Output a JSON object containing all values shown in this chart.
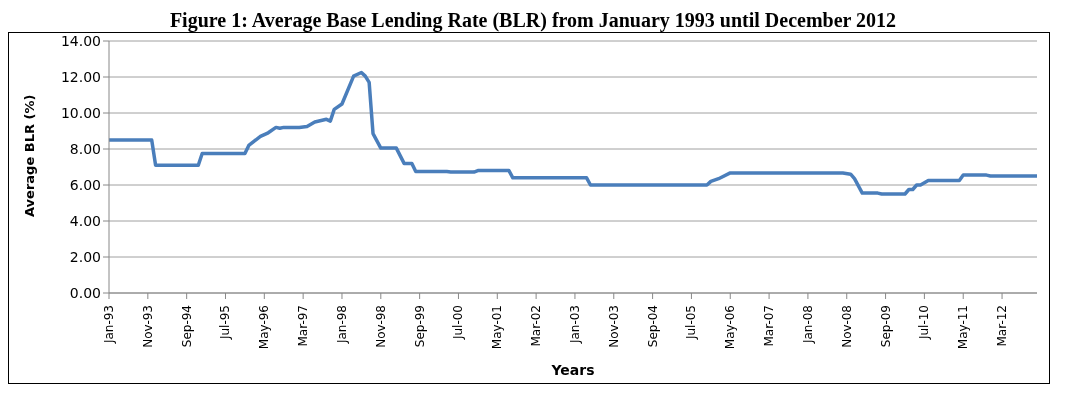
{
  "chart_data": {
    "type": "line",
    "title": "Figure 1: Average Base Lending Rate (BLR) from January 1993 until December 2012",
    "xlabel": "Years",
    "ylabel": "Average BLR (%)",
    "x": [
      "1993-01",
      "1993-12",
      "1994-01",
      "1994-12",
      "1995-01",
      "1995-12",
      "1996-01",
      "1996-04",
      "1996-06",
      "1996-08",
      "1996-09",
      "1996-10",
      "1997-02",
      "1997-04",
      "1997-06",
      "1997-09",
      "1997-10",
      "1997-11",
      "1998-01",
      "1998-04",
      "1998-06",
      "1998-07",
      "1998-08",
      "1998-09",
      "1998-11",
      "1999-03",
      "1999-05",
      "1999-07",
      "1999-08",
      "2000-04",
      "2000-05",
      "2000-11",
      "2000-12",
      "2001-08",
      "2001-09",
      "2003-04",
      "2003-05",
      "2005-11",
      "2005-12",
      "2006-02",
      "2006-05",
      "2008-10",
      "2008-12",
      "2009-01",
      "2009-03",
      "2009-07",
      "2009-08",
      "2010-02",
      "2010-03",
      "2010-04",
      "2010-05",
      "2010-06",
      "2010-08",
      "2011-04",
      "2011-05",
      "2011-11",
      "2011-12",
      "2012-12"
    ],
    "series": [
      {
        "color": "#4a7ebb",
        "values": [
          8.5,
          8.5,
          7.1,
          7.1,
          7.75,
          7.75,
          8.2,
          8.7,
          8.9,
          9.2,
          9.15,
          9.2,
          9.2,
          9.25,
          9.5,
          9.65,
          9.55,
          10.2,
          10.5,
          12.05,
          12.25,
          12.05,
          11.7,
          8.85,
          8.05,
          8.05,
          7.2,
          7.2,
          6.75,
          6.75,
          6.72,
          6.72,
          6.8,
          6.8,
          6.4,
          6.4,
          6.0,
          6.0,
          6.2,
          6.35,
          6.67,
          6.67,
          6.6,
          6.35,
          5.55,
          5.55,
          5.5,
          5.5,
          5.75,
          5.75,
          6.0,
          6.0,
          6.25,
          6.25,
          6.55,
          6.55,
          6.5,
          6.5
        ]
      }
    ],
    "xlim": [
      "1993-01",
      "2012-12"
    ],
    "xticks": [
      {
        "value": "1993-01",
        "label": "Jan-93"
      },
      {
        "value": "1993-11",
        "label": "Nov-93"
      },
      {
        "value": "1994-09",
        "label": "Sep-94"
      },
      {
        "value": "1995-07",
        "label": "Jul-95"
      },
      {
        "value": "1996-05",
        "label": "May-96"
      },
      {
        "value": "1997-03",
        "label": "Mar-97"
      },
      {
        "value": "1998-01",
        "label": "Jan-98"
      },
      {
        "value": "1998-11",
        "label": "Nov-98"
      },
      {
        "value": "1999-09",
        "label": "Sep-99"
      },
      {
        "value": "2000-07",
        "label": "Jul-00"
      },
      {
        "value": "2001-05",
        "label": "May-01"
      },
      {
        "value": "2002-03",
        "label": "Mar-02"
      },
      {
        "value": "2003-01",
        "label": "Jan-03"
      },
      {
        "value": "2003-11",
        "label": "Nov-03"
      },
      {
        "value": "2004-09",
        "label": "Sep-04"
      },
      {
        "value": "2005-07",
        "label": "Jul-05"
      },
      {
        "value": "2006-05",
        "label": "May-06"
      },
      {
        "value": "2007-03",
        "label": "Mar-07"
      },
      {
        "value": "2008-01",
        "label": "Jan-08"
      },
      {
        "value": "2008-11",
        "label": "Nov-08"
      },
      {
        "value": "2009-09",
        "label": "Sep-09"
      },
      {
        "value": "2010-07",
        "label": "Jul-10"
      },
      {
        "value": "2011-05",
        "label": "May-11"
      },
      {
        "value": "2012-03",
        "label": "Mar-12"
      }
    ],
    "ylim": [
      0,
      14
    ],
    "yticks": [
      {
        "value": 0,
        "label": "0.00"
      },
      {
        "value": 2,
        "label": "2.00"
      },
      {
        "value": 4,
        "label": "4.00"
      },
      {
        "value": 6,
        "label": "6.00"
      },
      {
        "value": 8,
        "label": "8.00"
      },
      {
        "value": 10,
        "label": "10.00"
      },
      {
        "value": 12,
        "label": "12.00"
      },
      {
        "value": 14,
        "label": "14.00"
      }
    ],
    "grid": "y",
    "marker": "none",
    "line_style": "solid"
  }
}
